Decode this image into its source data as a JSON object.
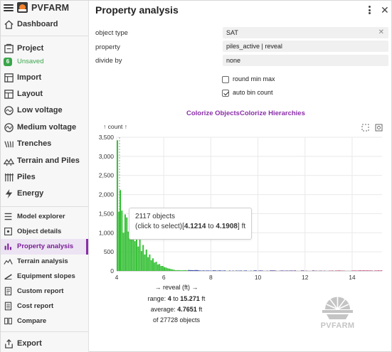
{
  "app": {
    "name": "PVFARM"
  },
  "sidebar": {
    "items": [
      {
        "id": "dashboard",
        "label": "Dashboard",
        "icon": "home-icon"
      },
      {
        "id": "project",
        "label": "Project",
        "icon": "project-icon"
      },
      {
        "id": "import",
        "label": "Import",
        "icon": "import-icon"
      },
      {
        "id": "layout",
        "label": "Layout",
        "icon": "layout-icon"
      },
      {
        "id": "low-voltage",
        "label": "Low voltage",
        "icon": "low-voltage-icon"
      },
      {
        "id": "medium-voltage",
        "label": "Medium voltage",
        "icon": "medium-voltage-icon"
      },
      {
        "id": "trenches",
        "label": "Trenches",
        "icon": "trenches-icon"
      },
      {
        "id": "terrain-piles",
        "label": "Terrain and Piles",
        "icon": "terrain-icon"
      },
      {
        "id": "piles",
        "label": "Piles",
        "icon": "piles-icon"
      },
      {
        "id": "energy",
        "label": "Energy",
        "icon": "lightning-icon"
      }
    ],
    "project_status": {
      "badge": "6",
      "text": "Unsaved"
    },
    "tools": [
      {
        "id": "model-explorer",
        "label": "Model explorer",
        "icon": "model-explorer-icon"
      },
      {
        "id": "object-details",
        "label": "Object details",
        "icon": "object-details-icon"
      },
      {
        "id": "property-analysis",
        "label": "Property analysis",
        "icon": "bar-chart-icon",
        "active": true
      },
      {
        "id": "terrain-analysis",
        "label": "Terrain analysis",
        "icon": "terrain-analysis-icon"
      },
      {
        "id": "equipment-slopes",
        "label": "Equipment slopes",
        "icon": "equipment-slopes-icon"
      },
      {
        "id": "custom-report",
        "label": "Custom report",
        "icon": "custom-report-icon"
      },
      {
        "id": "cost-report",
        "label": "Cost report",
        "icon": "cost-report-icon"
      },
      {
        "id": "compare",
        "label": "Compare",
        "icon": "compare-icon"
      }
    ],
    "export": {
      "label": "Export",
      "icon": "export-icon"
    }
  },
  "panel": {
    "title": "Property analysis",
    "fields": {
      "object_type": {
        "label": "object type",
        "value": "SAT"
      },
      "property": {
        "label": "property",
        "value": "piles_active | reveal"
      },
      "divide_by": {
        "label": "divide by",
        "value": "none"
      }
    },
    "options": {
      "round_min_max": {
        "label": "round min max",
        "checked": false
      },
      "auto_bin_count": {
        "label": "auto bin count",
        "checked": true
      }
    },
    "actions": {
      "colorize_objects": "Colorize Objects",
      "colorize_hierarchies": "Colorize Hierarchies"
    },
    "tooltip": {
      "count_line": "2117 objects",
      "hint": "(click to select)",
      "range_from": "4.1214",
      "range_sep": "to",
      "range_to": "4.1908",
      "unit": "ft"
    },
    "stats": {
      "range_prefix": "range:",
      "range_min": "4",
      "range_sep": "to",
      "range_max": "15.271",
      "range_unit": "ft",
      "average_prefix": "average:",
      "average_value": "4.7651",
      "average_unit": "ft",
      "total_prefix": "of",
      "total_value": "27728",
      "total_suffix": "objects"
    },
    "logo_text": "PVFARM"
  },
  "chart_data": {
    "type": "bar",
    "ylabel": "↑ count ↑",
    "xlabel": "→ reveal (ft) →",
    "x_ticks": [
      4,
      6,
      8,
      10,
      12,
      14
    ],
    "y_ticks": [
      "0",
      "500",
      "1,000",
      "1,500",
      "2,000",
      "2,500",
      "3,000",
      "3,500"
    ],
    "xlim": [
      4,
      15.271
    ],
    "ylim": [
      0,
      3500
    ],
    "bin_width": 0.0694,
    "bin_starts": [
      4.0,
      4.0694,
      4.1214,
      4.1908,
      4.2602,
      4.3296,
      4.399,
      4.4684,
      4.5378,
      4.6072,
      4.6766,
      4.746,
      4.8154,
      4.8848,
      4.9542,
      5.0236,
      5.093,
      5.1624,
      5.2318,
      5.3012,
      5.3706,
      5.44,
      5.5094,
      5.5788,
      5.6482,
      5.7176,
      5.787,
      5.8564,
      5.9258,
      5.9952,
      6.0646,
      6.134,
      6.2034,
      6.2728,
      6.3422,
      6.4116,
      6.481
    ],
    "counts": [
      3420,
      1550,
      2117,
      1580,
      1000,
      1480,
      1400,
      1030,
      1300,
      900,
      1100,
      780,
      960,
      640,
      820,
      520,
      680,
      430,
      560,
      360,
      430,
      280,
      330,
      220,
      240,
      170,
      180,
      130,
      130,
      100,
      90,
      70,
      60,
      50,
      40,
      30,
      20
    ],
    "sparse_bins_note": "small counts continue along the axis up to 15.271 ft",
    "highlight_x": 4.1214,
    "colors": {
      "low": "#2fbf2f",
      "mid": "#2a3fa8",
      "high": "#c0306a"
    }
  }
}
